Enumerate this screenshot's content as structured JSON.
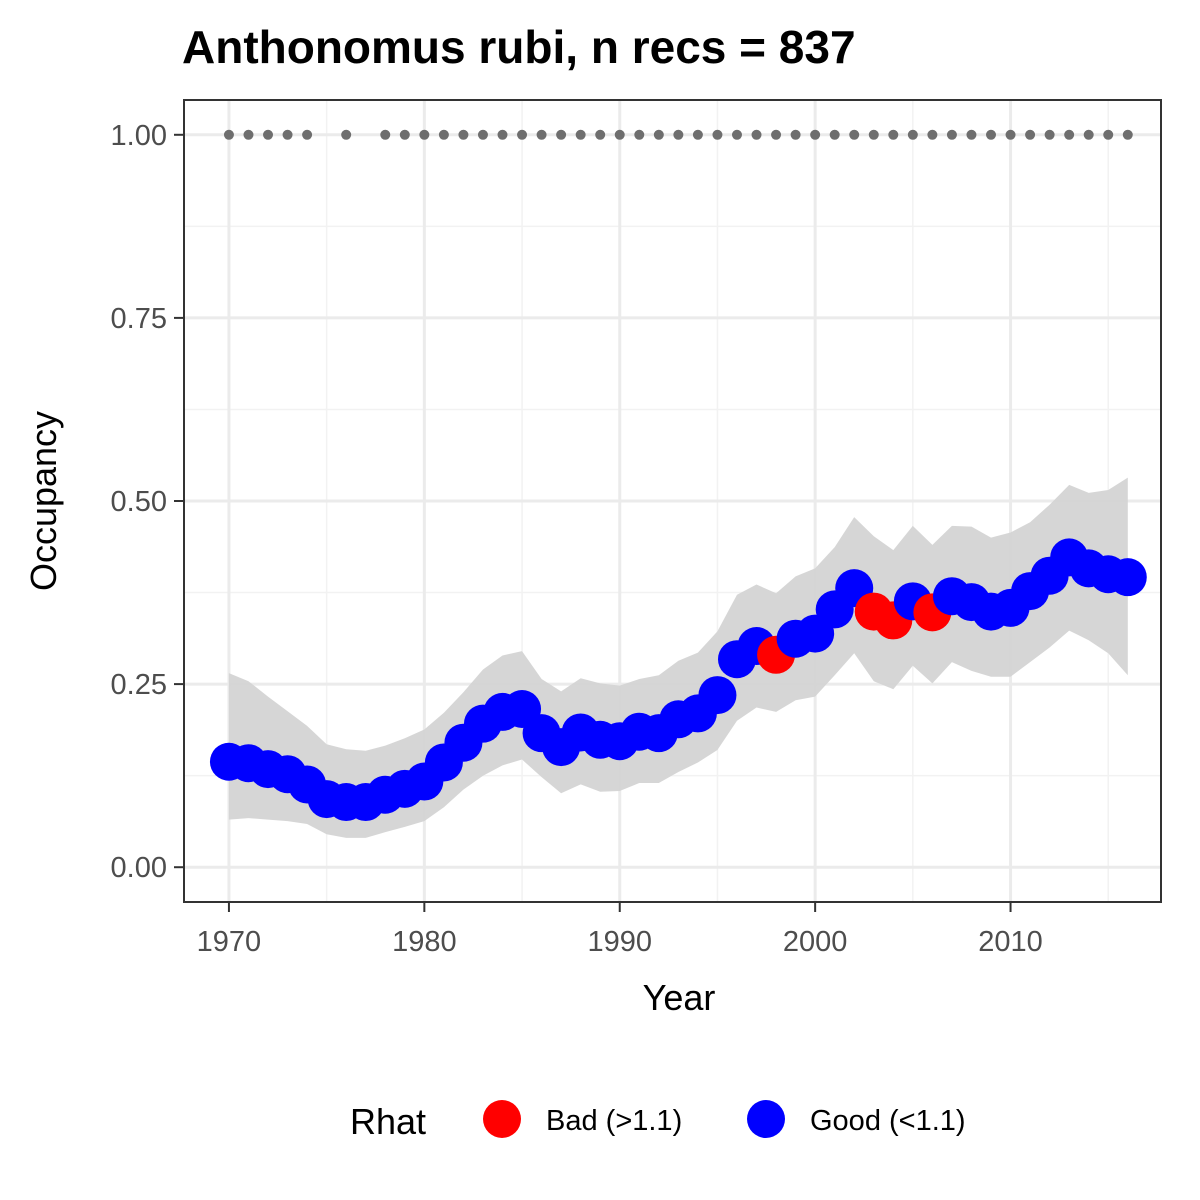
{
  "chart_data": {
    "type": "line",
    "title": "Anthonomus rubi, n recs = 837",
    "xlabel": "Year",
    "ylabel": "Occupancy",
    "xlim": [
      1967.7,
      2017.7
    ],
    "ylim": [
      -0.0475,
      1.0475
    ],
    "x_ticks": [
      1970,
      1980,
      1990,
      2000,
      2010
    ],
    "x_tick_labels": [
      "1970",
      "1980",
      "1990",
      "2000",
      "2010"
    ],
    "y_ticks": [
      0,
      0.25,
      0.5,
      0.75,
      1
    ],
    "y_tick_labels": [
      "0.00",
      "0.25",
      "0.50",
      "0.75",
      "1.00"
    ],
    "grid": true,
    "legend": {
      "title": "Rhat",
      "position": "bottom",
      "entries": [
        {
          "label": "Bad (>1.1)",
          "color": "#ff0000"
        },
        {
          "label": "Good (<1.1)",
          "color": "#0000ff"
        }
      ]
    },
    "colors": {
      "bad": "#ff0000",
      "good": "#0000ff",
      "ribbon": "#d4d4d4",
      "record_dots": "#6e6e6e"
    },
    "years": [
      1970,
      1971,
      1972,
      1973,
      1974,
      1975,
      1976,
      1977,
      1978,
      1979,
      1980,
      1981,
      1982,
      1983,
      1984,
      1985,
      1986,
      1987,
      1988,
      1989,
      1990,
      1991,
      1992,
      1993,
      1994,
      1995,
      1996,
      1997,
      1998,
      1999,
      2000,
      2001,
      2002,
      2003,
      2004,
      2005,
      2006,
      2007,
      2008,
      2009,
      2010,
      2011,
      2012,
      2013,
      2014,
      2015,
      2016
    ],
    "occupancy": [
      0.144,
      0.142,
      0.134,
      0.127,
      0.113,
      0.093,
      0.089,
      0.089,
      0.099,
      0.107,
      0.117,
      0.143,
      0.17,
      0.196,
      0.212,
      0.216,
      0.183,
      0.164,
      0.184,
      0.174,
      0.172,
      0.185,
      0.183,
      0.202,
      0.21,
      0.235,
      0.284,
      0.302,
      0.29,
      0.312,
      0.319,
      0.352,
      0.381,
      0.349,
      0.337,
      0.363,
      0.348,
      0.37,
      0.362,
      0.349,
      0.354,
      0.377,
      0.398,
      0.423,
      0.408,
      0.4,
      0.396
    ],
    "ci_lower": [
      0.065,
      0.067,
      0.065,
      0.063,
      0.059,
      0.045,
      0.04,
      0.04,
      0.048,
      0.055,
      0.063,
      0.082,
      0.106,
      0.125,
      0.139,
      0.147,
      0.123,
      0.101,
      0.113,
      0.103,
      0.104,
      0.115,
      0.115,
      0.13,
      0.143,
      0.16,
      0.2,
      0.218,
      0.212,
      0.228,
      0.233,
      0.262,
      0.292,
      0.254,
      0.243,
      0.275,
      0.251,
      0.28,
      0.268,
      0.26,
      0.26,
      0.28,
      0.3,
      0.323,
      0.31,
      0.292,
      0.262
    ],
    "ci_upper": [
      0.265,
      0.254,
      0.233,
      0.213,
      0.193,
      0.168,
      0.161,
      0.159,
      0.166,
      0.176,
      0.188,
      0.211,
      0.239,
      0.27,
      0.289,
      0.295,
      0.257,
      0.24,
      0.258,
      0.251,
      0.248,
      0.257,
      0.262,
      0.282,
      0.293,
      0.322,
      0.372,
      0.386,
      0.374,
      0.397,
      0.408,
      0.437,
      0.478,
      0.452,
      0.433,
      0.466,
      0.44,
      0.466,
      0.465,
      0.45,
      0.457,
      0.471,
      0.495,
      0.522,
      0.511,
      0.515,
      0.532
    ],
    "rhat_status": [
      "good",
      "good",
      "good",
      "good",
      "good",
      "good",
      "good",
      "good",
      "good",
      "good",
      "good",
      "good",
      "good",
      "good",
      "good",
      "good",
      "good",
      "good",
      "good",
      "good",
      "good",
      "good",
      "good",
      "good",
      "good",
      "good",
      "good",
      "good",
      "bad",
      "good",
      "good",
      "good",
      "good",
      "bad",
      "bad",
      "good",
      "bad",
      "good",
      "good",
      "good",
      "good",
      "good",
      "good",
      "good",
      "good",
      "good",
      "good"
    ],
    "record_years": [
      1970,
      1971,
      1972,
      1973,
      1974,
      1976,
      1978,
      1979,
      1980,
      1981,
      1982,
      1983,
      1984,
      1985,
      1986,
      1987,
      1988,
      1989,
      1990,
      1991,
      1992,
      1993,
      1994,
      1995,
      1996,
      1997,
      1998,
      1999,
      2000,
      2001,
      2002,
      2003,
      2004,
      2005,
      2006,
      2007,
      2008,
      2009,
      2010,
      2011,
      2012,
      2013,
      2014,
      2015,
      2016
    ],
    "record_value": 1.0
  }
}
